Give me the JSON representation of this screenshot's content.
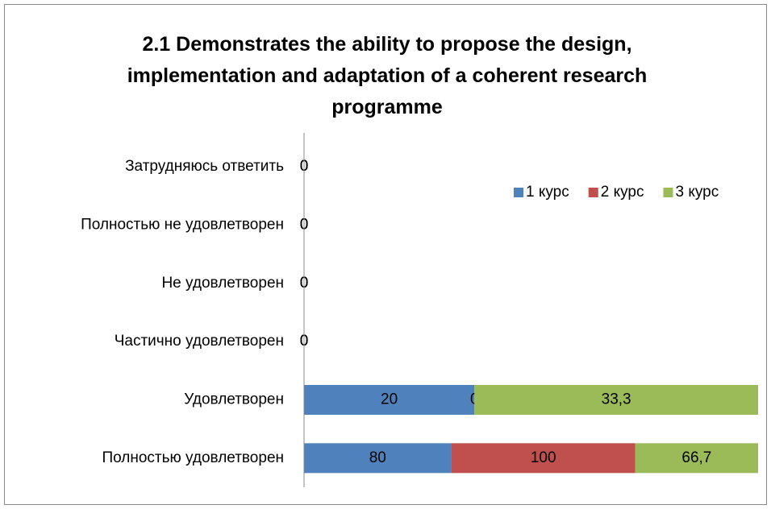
{
  "chart_data": {
    "type": "bar",
    "orientation": "horizontal",
    "stacking": "percent",
    "title": "2.1 Demonstrates the ability to propose the design, implementation and adaptation of a coherent research programme",
    "categories": [
      "Затрудняюсь ответить",
      "Полностью не удовлетворен",
      "Не удовлетворен",
      "Частично удовлетворен",
      "Удовлетворен",
      "Полностью удовлетворен"
    ],
    "series": [
      {
        "name": "1 курс",
        "color": "#4f81bd",
        "values": [
          0,
          0,
          0,
          0,
          20,
          80
        ]
      },
      {
        "name": "2 курс",
        "color": "#c0504d",
        "values": [
          0,
          0,
          0,
          0,
          0,
          100
        ]
      },
      {
        "name": "3 курс",
        "color": "#9bbb59",
        "values": [
          0,
          0,
          0,
          0,
          33.3,
          66.7
        ],
        "value_labels": [
          "0",
          "0",
          "0",
          "0",
          "33,3",
          "66,7"
        ]
      }
    ],
    "legend": "top-right"
  }
}
